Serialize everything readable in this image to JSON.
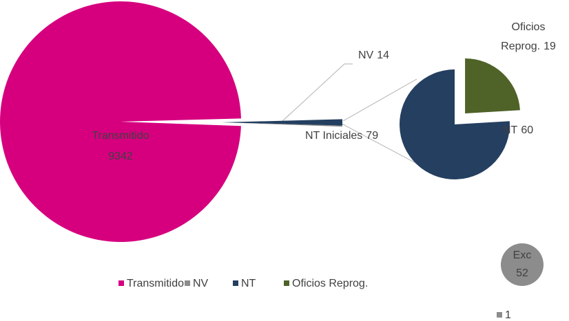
{
  "chart_data": [
    {
      "type": "pie-of-pie",
      "main": {
        "categories": [
          "Transmitido",
          "NV",
          "NT Iniciales"
        ],
        "values": [
          9342,
          14,
          79
        ],
        "colors": [
          "#d6007f",
          "#8c8c8c",
          "#243f60"
        ]
      },
      "secondary": {
        "categories": [
          "NT",
          "Oficios Reprog."
        ],
        "values": [
          60,
          19
        ],
        "colors": [
          "#243f60",
          "#4f6228"
        ]
      },
      "legend": [
        {
          "name": "Transmitido",
          "color": "#d6007f"
        },
        {
          "name": "NV",
          "color": "#8c8c8c"
        },
        {
          "name": "NT",
          "color": "#243f60"
        },
        {
          "name": "Oficios Reprog.",
          "color": "#4f6228"
        }
      ]
    },
    {
      "type": "pie",
      "series_name": "Exc",
      "categories": [
        "1"
      ],
      "values": [
        52
      ],
      "color": "#8c8c8c"
    }
  ]
}
